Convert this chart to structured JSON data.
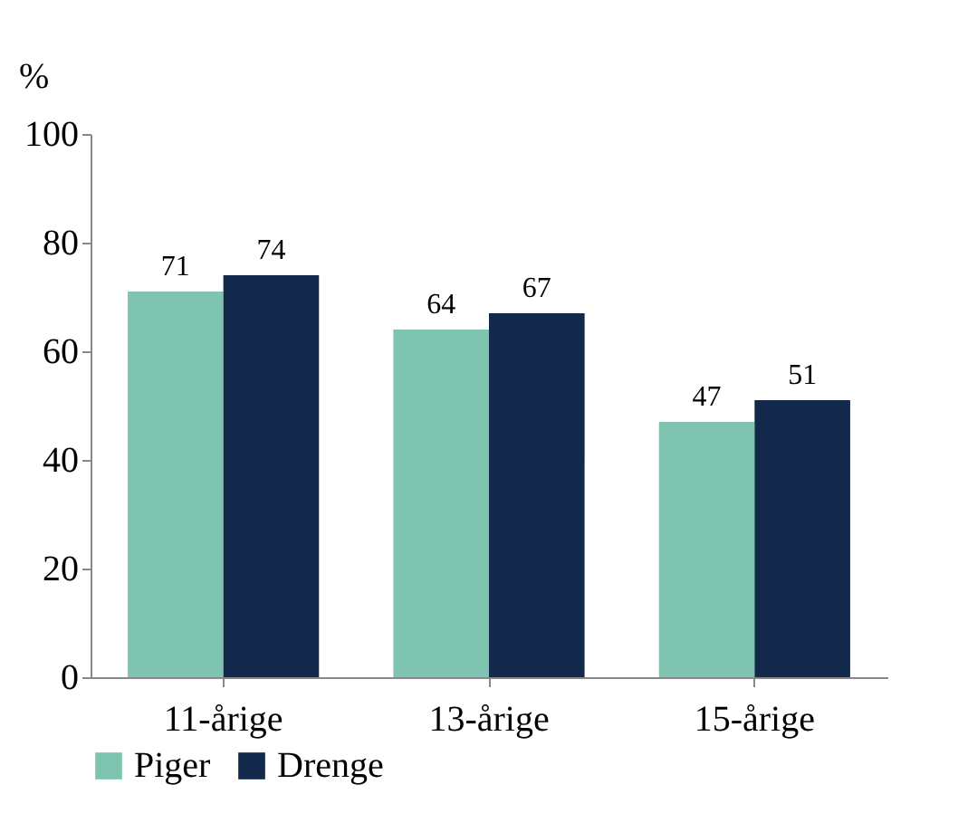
{
  "chart_data": {
    "type": "bar",
    "ylabel": "%",
    "categories": [
      "11-årige",
      "13-årige",
      "15-årige"
    ],
    "series": [
      {
        "name": "Piger",
        "color": "#7fc4b0",
        "values": [
          71,
          64,
          47
        ]
      },
      {
        "name": "Drenge",
        "color": "#13294b",
        "values": [
          74,
          67,
          51
        ]
      }
    ],
    "ylim": [
      0,
      100
    ],
    "yticks": [
      0,
      20,
      40,
      60,
      80,
      100
    ],
    "data_labels": true,
    "legend": "bottom",
    "grid": false
  }
}
